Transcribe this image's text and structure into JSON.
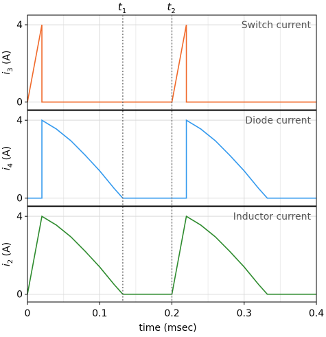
{
  "chart_data": {
    "type": "line",
    "xlabel": "time (msec)",
    "xlim": [
      0,
      0.4
    ],
    "xticks": [
      "0",
      "0.1",
      "0.2",
      "0.3",
      "0.4"
    ],
    "grid": true,
    "markers": [
      {
        "base": "t",
        "sub": "1",
        "x": 0.132
      },
      {
        "base": "t",
        "sub": "2",
        "x": 0.2
      }
    ],
    "panels": [
      {
        "title": "Switch current",
        "ylabel_base": "i",
        "ylabel_sub": "3",
        "ylabel_unit": " (A)",
        "yticks": [
          "0",
          "4"
        ],
        "ylim": [
          -0.4,
          4.5
        ],
        "color": "#f0692a",
        "series": {
          "x": [
            0,
            0.02,
            0.02,
            0.2,
            0.22,
            0.22,
            0.4
          ],
          "y": [
            0,
            4,
            0,
            0,
            4,
            0,
            0
          ]
        }
      },
      {
        "title": "Diode current",
        "ylabel_base": "i",
        "ylabel_sub": "4",
        "ylabel_unit": " (A)",
        "yticks": [
          "0",
          "4"
        ],
        "ylim": [
          -0.4,
          4.5
        ],
        "color": "#3399ee",
        "series": {
          "x": [
            0,
            0.02,
            0.02,
            0.04,
            0.06,
            0.08,
            0.1,
            0.12,
            0.132,
            0.2,
            0.22,
            0.22,
            0.24,
            0.26,
            0.28,
            0.3,
            0.32,
            0.332,
            0.4
          ],
          "y": [
            0,
            0,
            4,
            3.55,
            2.95,
            2.2,
            1.4,
            0.5,
            0,
            0,
            0,
            4,
            3.55,
            2.95,
            2.2,
            1.4,
            0.5,
            0,
            0
          ]
        }
      },
      {
        "title": "Inductor current",
        "ylabel_base": "i",
        "ylabel_sub": "2",
        "ylabel_unit": " (A)",
        "yticks": [
          "0",
          "4"
        ],
        "ylim": [
          -0.4,
          4.5
        ],
        "color": "#2e8b2e",
        "series": {
          "x": [
            0,
            0.02,
            0.04,
            0.06,
            0.08,
            0.1,
            0.12,
            0.132,
            0.2,
            0.22,
            0.24,
            0.26,
            0.28,
            0.3,
            0.32,
            0.332,
            0.4
          ],
          "y": [
            0,
            4,
            3.55,
            2.95,
            2.2,
            1.4,
            0.5,
            0,
            0,
            4,
            3.55,
            2.95,
            2.2,
            1.4,
            0.5,
            0,
            0
          ]
        }
      }
    ]
  }
}
